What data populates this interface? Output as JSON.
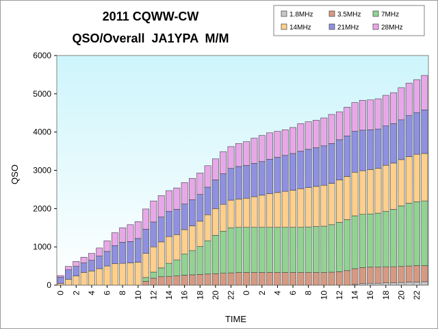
{
  "chart_data": {
    "type": "bar",
    "stacked": true,
    "title": "2011 CQWW-CW",
    "subtitle": "QSO/Overall  JA1YPA  M/M",
    "xlabel": "TIME",
    "ylabel": "QSO",
    "ylim": [
      0,
      6000
    ],
    "yticks": [
      "0",
      "1000",
      "2000",
      "3000",
      "4000",
      "5000",
      "6000"
    ],
    "grid": false,
    "legend_position": "top-right",
    "categories": [
      "0",
      "1",
      "2",
      "3",
      "4",
      "5",
      "6",
      "7",
      "8",
      "9",
      "10",
      "11",
      "12",
      "13",
      "14",
      "15",
      "16",
      "17",
      "18",
      "19",
      "20",
      "21",
      "22",
      "23",
      "0",
      "1",
      "2",
      "3",
      "4",
      "5",
      "6",
      "7",
      "8",
      "9",
      "10",
      "11",
      "12",
      "13",
      "14",
      "15",
      "16",
      "17",
      "18",
      "19",
      "20",
      "21",
      "22",
      "23"
    ],
    "x_tick_labels": [
      "0",
      "2",
      "4",
      "6",
      "8",
      "10",
      "12",
      "14",
      "16",
      "18",
      "20",
      "22",
      "0",
      "2",
      "4",
      "6",
      "8",
      "10",
      "12",
      "14",
      "16",
      "18",
      "20",
      "22"
    ],
    "plot_background": "#cdf5fb",
    "series": [
      {
        "name": "1.8MHz",
        "color": "#c8c8c8",
        "values": [
          0,
          0,
          0,
          0,
          0,
          0,
          0,
          0,
          0,
          0,
          0,
          0,
          0,
          0,
          0,
          0,
          0,
          0,
          0,
          0,
          0,
          0,
          0,
          0,
          0,
          0,
          0,
          0,
          0,
          0,
          0,
          0,
          0,
          0,
          0,
          0,
          0,
          0,
          20,
          40,
          50,
          50,
          60,
          60,
          70,
          80,
          80,
          90
        ]
      },
      {
        "name": "3.5MHz",
        "color": "#d69a82",
        "values": [
          0,
          0,
          0,
          0,
          0,
          0,
          0,
          0,
          0,
          0,
          0,
          100,
          180,
          220,
          230,
          240,
          260,
          270,
          280,
          290,
          300,
          310,
          320,
          330,
          330,
          330,
          330,
          330,
          330,
          330,
          330,
          330,
          330,
          330,
          330,
          340,
          350,
          380,
          410,
          420,
          420,
          420,
          420,
          420,
          420,
          420,
          430,
          420
        ]
      },
      {
        "name": "7MHz",
        "color": "#92d292",
        "values": [
          0,
          0,
          0,
          0,
          0,
          0,
          0,
          0,
          0,
          0,
          0,
          100,
          160,
          230,
          340,
          420,
          550,
          630,
          730,
          870,
          1000,
          1100,
          1180,
          1180,
          1180,
          1180,
          1180,
          1180,
          1180,
          1180,
          1180,
          1180,
          1190,
          1200,
          1210,
          1240,
          1290,
          1330,
          1380,
          1390,
          1390,
          1410,
          1450,
          1500,
          1580,
          1640,
          1670,
          1690
        ]
      },
      {
        "name": "14MHz",
        "color": "#ffcf8c",
        "values": [
          40,
          150,
          240,
          330,
          370,
          430,
          500,
          560,
          570,
          580,
          600,
          630,
          660,
          680,
          700,
          660,
          640,
          650,
          660,
          680,
          700,
          700,
          720,
          740,
          760,
          800,
          840,
          880,
          910,
          940,
          970,
          1010,
          1030,
          1050,
          1070,
          1080,
          1110,
          1130,
          1140,
          1140,
          1160,
          1170,
          1200,
          1210,
          1210,
          1220,
          1240,
          1240
        ]
      },
      {
        "name": "21MHz",
        "color": "#9090e0",
        "values": [
          170,
          250,
          250,
          250,
          280,
          330,
          380,
          470,
          550,
          560,
          620,
          630,
          650,
          650,
          660,
          660,
          670,
          680,
          700,
          720,
          750,
          800,
          830,
          850,
          860,
          870,
          880,
          900,
          920,
          940,
          960,
          980,
          1000,
          1010,
          1030,
          1040,
          1050,
          1060,
          1070,
          1060,
          1040,
          1030,
          1030,
          1030,
          1040,
          1070,
          1090,
          1140
        ]
      },
      {
        "name": "28MHz",
        "color": "#e8a8e8",
        "values": [
          40,
          90,
          130,
          150,
          180,
          210,
          280,
          340,
          380,
          440,
          440,
          530,
          550,
          560,
          540,
          560,
          560,
          560,
          560,
          560,
          550,
          580,
          570,
          600,
          620,
          660,
          680,
          690,
          680,
          670,
          680,
          720,
          720,
          720,
          730,
          760,
          730,
          750,
          750,
          780,
          780,
          790,
          800,
          810,
          840,
          850,
          860,
          900
        ]
      }
    ]
  }
}
